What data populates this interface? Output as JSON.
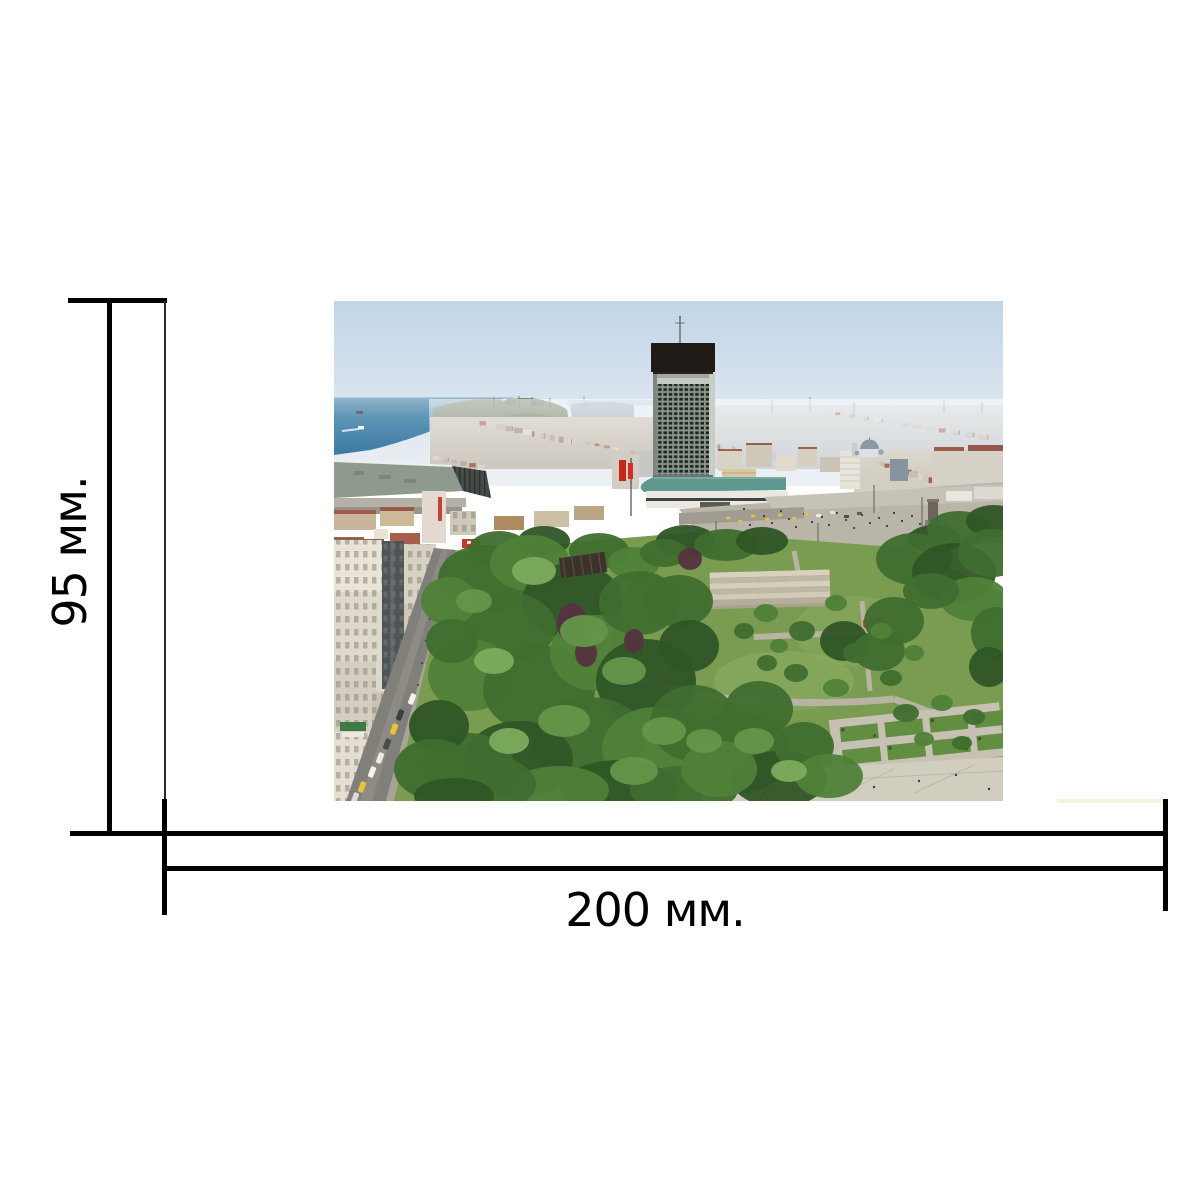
{
  "background": "#ffffff",
  "dimension_annotation": {
    "height_label": "95 мм.",
    "height_value_mm": 95,
    "width_label": "200 мм.",
    "width_value_mm": 200,
    "unit": "мм",
    "line_color": "#000000"
  },
  "photo": {
    "description": "Aerial daytime photo of Taksim Square and Gezi Park in Istanbul: green tree canopy of the park in the foreground, The Marmara hotel tower in the center, open plaza with people and taxis, dense city skyline and the sea on the hazy horizon",
    "palette": {
      "sky_top": "#c2d5e7",
      "sky_bottom": "#edf1f4",
      "sea_light": "#8fb3c9",
      "sea_deep": "#3b7aa3",
      "haze_city": "#cfd3d6",
      "plaza": "#bab5a9",
      "tower_dark": "#201b16",
      "teal_roof": "#5f988e",
      "flag_red": "#c62818",
      "taxi_yellow": "#e8c437",
      "trees_dark": "#2f5526",
      "trees_mid": "#4f8138",
      "trees_light": "#7cab5d",
      "street_gray": "#817f79",
      "building_cream": "#e8e3d6"
    }
  }
}
